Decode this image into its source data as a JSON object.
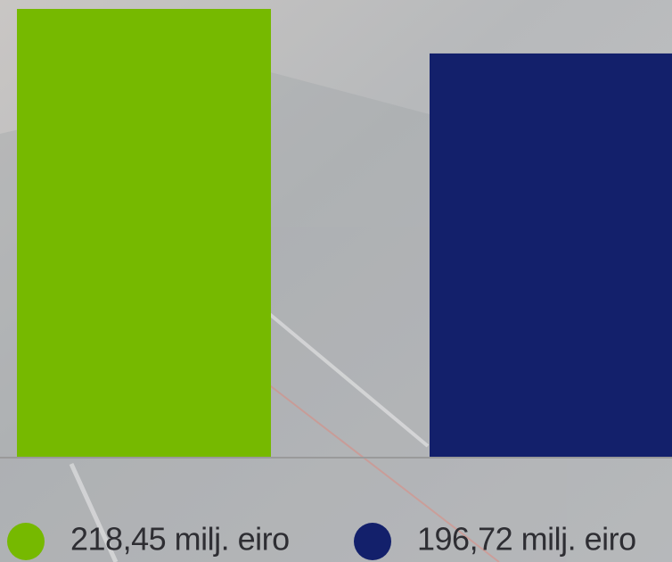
{
  "chart_data": {
    "type": "bar",
    "values": [
      218.45,
      196.72
    ],
    "value_labels": [
      "218,45 milj. eiro",
      "196,72 milj. eiro"
    ],
    "colors": [
      "#76b900",
      "#13206b"
    ],
    "ylim": [
      0,
      218.45
    ]
  }
}
